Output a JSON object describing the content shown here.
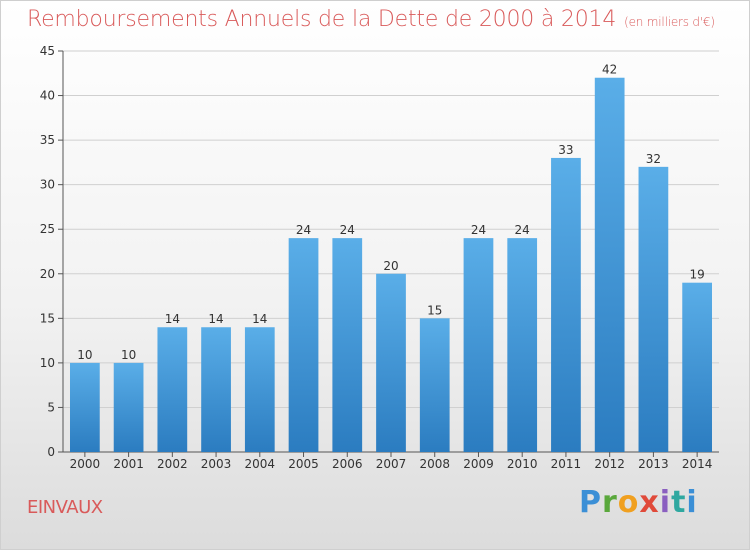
{
  "header": {
    "title": "Remboursements Annuels de la Dette de 2000 à 2014",
    "unit": "(en milliers d'€)"
  },
  "footer": {
    "commune": "EINVAUX",
    "brand": "Proxiti"
  },
  "colors": {
    "title": "#d95a5a",
    "bar_top": "#5aaee8",
    "bar_bottom": "#2b7cc0",
    "grid": "#d0d0d0"
  },
  "chart_data": {
    "type": "bar",
    "categories": [
      "2000",
      "2001",
      "2002",
      "2003",
      "2004",
      "2005",
      "2006",
      "2007",
      "2008",
      "2009",
      "2010",
      "2011",
      "2012",
      "2013",
      "2014"
    ],
    "values": [
      10,
      10,
      14,
      14,
      14,
      24,
      24,
      20,
      15,
      24,
      24,
      33,
      42,
      32,
      19
    ],
    "ylim": [
      0,
      45
    ],
    "yticks": [
      0,
      5,
      10,
      15,
      20,
      25,
      30,
      35,
      40,
      45
    ],
    "grid": true,
    "title": "Remboursements Annuels de la Dette de 2000 à 2014",
    "xlabel": "",
    "ylabel": ""
  }
}
